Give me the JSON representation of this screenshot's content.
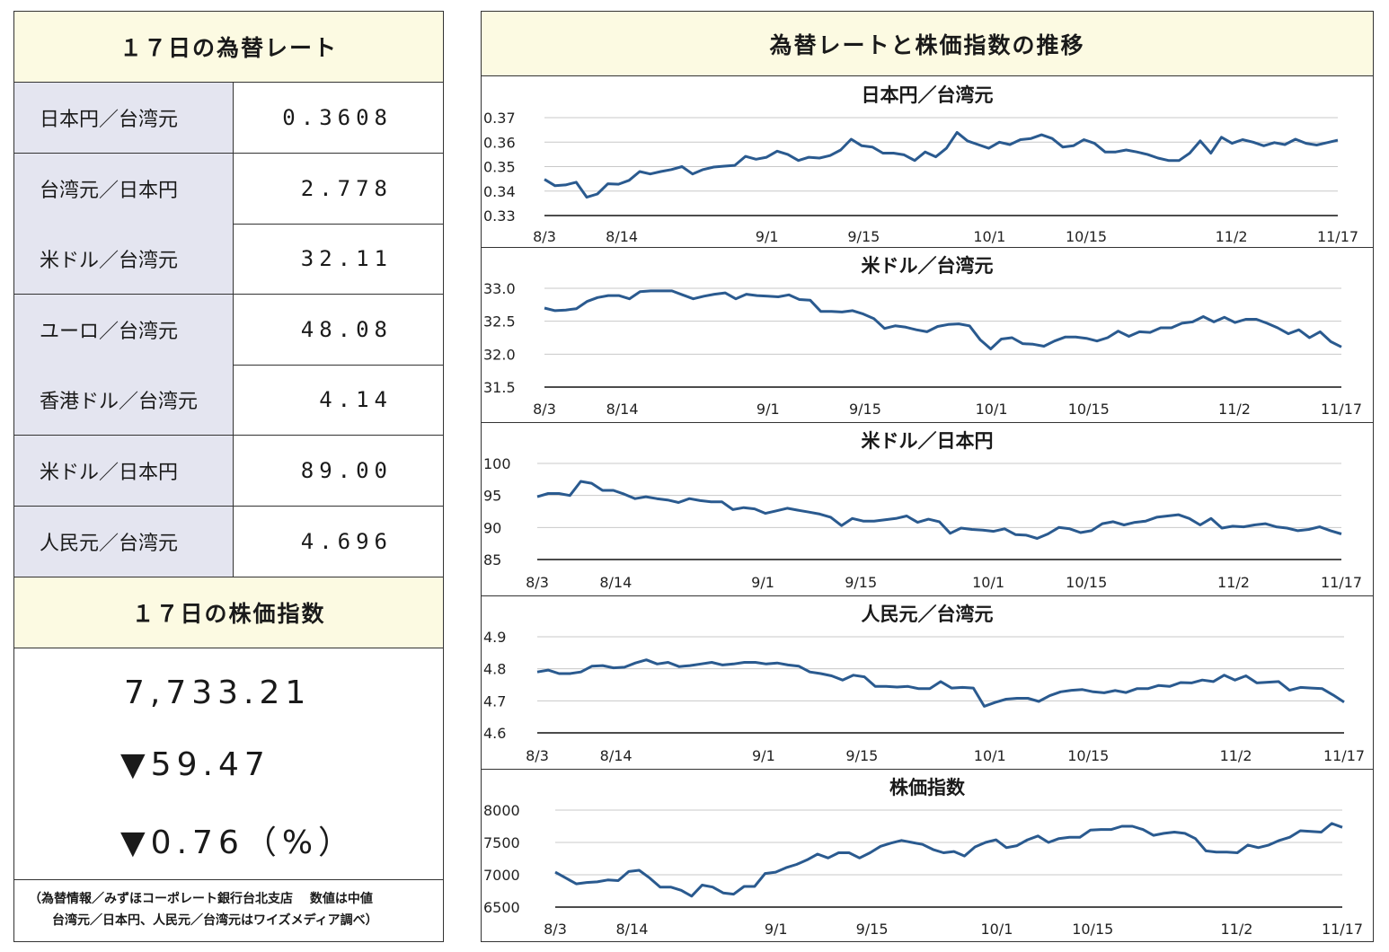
{
  "left": {
    "rates_title": "１７日の為替レート",
    "rates": [
      {
        "name": "日本円／台湾元",
        "value": "0.3608"
      },
      {
        "name": "台湾元／日本円",
        "value": "2.778"
      },
      {
        "name": "米ドル／台湾元",
        "value": "32.11"
      },
      {
        "name": "ユーロ／台湾元",
        "value": "48.08"
      },
      {
        "name": "香港ドル／台湾元",
        "value": "4.14"
      },
      {
        "name": "米ドル／日本円",
        "value": "89.00"
      },
      {
        "name": "人民元／台湾元",
        "value": "4.696"
      }
    ],
    "stock_title": "１７日の株価指数",
    "stock_value": "7,733.21",
    "stock_change": "▼59.47",
    "stock_change_pct": "▼0.76（%）",
    "note_line1": "（為替情報／みずほコーポレート銀行台北支店　 数値は中値",
    "note_line2": "台湾元／日本円、人民元／台湾元はワイズメディア調べ）"
  },
  "right": {
    "title": "為替レートと株価指数の推移"
  },
  "colors": {
    "line": "#2a5a8f",
    "grid": "#c8c8c8",
    "header_bg": "#fcfae2",
    "name_bg": "#e4e5f0"
  },
  "chart_data": [
    {
      "type": "line",
      "title": "日本円／台湾元",
      "x_tick_labels": [
        "8/3",
        "8/14",
        "9/1",
        "9/15",
        "10/1",
        "10/15",
        "11/2",
        "11/17"
      ],
      "x_tick_index": [
        0,
        8,
        23,
        33,
        46,
        56,
        71,
        82
      ],
      "y_ticks": [
        "0.33",
        "0.34",
        "0.35",
        "0.36",
        "0.37"
      ],
      "ylim": [
        0.33,
        0.37
      ],
      "values": [
        0.3448,
        0.3422,
        0.3425,
        0.3436,
        0.3375,
        0.3388,
        0.343,
        0.3428,
        0.3444,
        0.348,
        0.347,
        0.348,
        0.3488,
        0.35,
        0.347,
        0.3488,
        0.3498,
        0.3502,
        0.3505,
        0.3542,
        0.353,
        0.3538,
        0.3563,
        0.355,
        0.3525,
        0.3538,
        0.3535,
        0.3545,
        0.3568,
        0.3612,
        0.3585,
        0.358,
        0.3555,
        0.3555,
        0.3548,
        0.3525,
        0.356,
        0.354,
        0.3575,
        0.364,
        0.3605,
        0.359,
        0.3575,
        0.36,
        0.359,
        0.361,
        0.3615,
        0.363,
        0.3615,
        0.358,
        0.3585,
        0.361,
        0.3595,
        0.356,
        0.356,
        0.3568,
        0.356,
        0.355,
        0.3535,
        0.3525,
        0.3525,
        0.3555,
        0.3605,
        0.3555,
        0.362,
        0.3595,
        0.361,
        0.36,
        0.3585,
        0.3598,
        0.359,
        0.3612,
        0.3595,
        0.3588,
        0.3598,
        0.3608
      ]
    },
    {
      "type": "line",
      "title": "米ドル／台湾元",
      "x_tick_labels": [
        "8/3",
        "8/14",
        "9/1",
        "9/15",
        "10/1",
        "10/15",
        "11/2",
        "11/17"
      ],
      "x_tick_index": [
        0,
        8,
        23,
        33,
        46,
        56,
        71,
        82
      ],
      "y_ticks": [
        "31.5",
        "32.0",
        "32.5",
        "33.0"
      ],
      "ylim": [
        31.5,
        33.0
      ],
      "values": [
        32.7,
        32.66,
        32.67,
        32.69,
        32.8,
        32.86,
        32.89,
        32.89,
        32.84,
        32.95,
        32.96,
        32.96,
        32.96,
        32.9,
        32.84,
        32.88,
        32.91,
        32.93,
        32.84,
        32.91,
        32.89,
        32.88,
        32.87,
        32.9,
        32.83,
        32.82,
        32.65,
        32.65,
        32.64,
        32.66,
        32.61,
        32.54,
        32.39,
        32.43,
        32.41,
        32.37,
        32.34,
        32.42,
        32.45,
        32.46,
        32.43,
        32.22,
        32.08,
        32.23,
        32.25,
        32.16,
        32.15,
        32.12,
        32.2,
        32.26,
        32.26,
        32.24,
        32.2,
        32.25,
        32.35,
        32.27,
        32.34,
        32.33,
        32.4,
        32.4,
        32.47,
        32.49,
        32.57,
        32.49,
        32.56,
        32.48,
        32.53,
        32.53,
        32.47,
        32.4,
        32.31,
        32.37,
        32.25,
        32.34,
        32.19,
        32.11
      ]
    },
    {
      "type": "line",
      "title": "米ドル／日本円",
      "x_tick_labels": [
        "8/3",
        "8/14",
        "9/1",
        "9/15",
        "10/1",
        "10/15",
        "11/2",
        "11/17"
      ],
      "x_tick_index": [
        0,
        8,
        23,
        33,
        46,
        56,
        71,
        82
      ],
      "y_ticks": [
        "85",
        "90",
        "95",
        "100"
      ],
      "ylim": [
        85,
        100
      ],
      "values": [
        94.8,
        95.3,
        95.3,
        95.0,
        97.2,
        96.9,
        95.8,
        95.8,
        95.2,
        94.5,
        94.8,
        94.5,
        94.3,
        93.9,
        94.5,
        94.2,
        94.0,
        94.0,
        92.8,
        93.1,
        92.9,
        92.2,
        92.6,
        93.0,
        92.7,
        92.4,
        92.1,
        91.6,
        90.3,
        91.4,
        91.0,
        91.0,
        91.2,
        91.4,
        91.8,
        90.8,
        91.3,
        90.9,
        89.1,
        89.9,
        89.7,
        89.6,
        89.4,
        89.8,
        88.9,
        88.8,
        88.3,
        89.0,
        90.0,
        89.8,
        89.2,
        89.5,
        90.6,
        90.9,
        90.4,
        90.8,
        91.0,
        91.6,
        91.8,
        92.0,
        91.4,
        90.4,
        91.4,
        89.9,
        90.2,
        90.1,
        90.4,
        90.6,
        90.1,
        89.9,
        89.5,
        89.7,
        90.1,
        89.5,
        89.0
      ]
    },
    {
      "type": "line",
      "title": "人民元／台湾元",
      "x_tick_labels": [
        "8/3",
        "8/14",
        "9/1",
        "9/15",
        "10/1",
        "10/15",
        "11/2",
        "11/17"
      ],
      "x_tick_index": [
        0,
        8,
        23,
        33,
        46,
        56,
        71,
        82
      ],
      "y_ticks": [
        "4.6",
        "4.7",
        "4.8",
        "4.9"
      ],
      "ylim": [
        4.6,
        4.9
      ],
      "values": [
        4.79,
        4.796,
        4.785,
        4.785,
        4.79,
        4.808,
        4.81,
        4.803,
        4.805,
        4.818,
        4.828,
        4.815,
        4.82,
        4.807,
        4.81,
        4.815,
        4.82,
        4.812,
        4.815,
        4.82,
        4.82,
        4.815,
        4.818,
        4.812,
        4.808,
        4.79,
        4.785,
        4.778,
        4.765,
        4.78,
        4.775,
        4.745,
        4.745,
        4.743,
        4.745,
        4.738,
        4.738,
        4.76,
        4.74,
        4.742,
        4.74,
        4.683,
        4.695,
        4.705,
        4.708,
        4.708,
        4.698,
        4.716,
        4.728,
        4.733,
        4.735,
        4.728,
        4.725,
        4.732,
        4.726,
        4.738,
        4.738,
        4.748,
        4.745,
        4.757,
        4.756,
        4.765,
        4.76,
        4.78,
        4.765,
        4.778,
        4.756,
        4.758,
        4.76,
        4.733,
        4.742,
        4.74,
        4.738,
        4.718,
        4.696
      ]
    },
    {
      "type": "line",
      "title": "株価指数",
      "x_tick_labels": [
        "8/3",
        "8/14",
        "9/1",
        "9/15",
        "10/1",
        "10/15",
        "11/2",
        "11/17"
      ],
      "x_tick_index": [
        0,
        8,
        23,
        33,
        46,
        56,
        71,
        82
      ],
      "y_ticks": [
        "6500",
        "7000",
        "7500",
        "8000"
      ],
      "ylim": [
        6500,
        8000
      ],
      "values": [
        7040,
        6950,
        6860,
        6880,
        6890,
        6920,
        6910,
        7050,
        7070,
        6950,
        6810,
        6810,
        6760,
        6670,
        6840,
        6810,
        6720,
        6700,
        6820,
        6820,
        7020,
        7040,
        7110,
        7160,
        7230,
        7320,
        7260,
        7340,
        7340,
        7260,
        7340,
        7440,
        7490,
        7530,
        7500,
        7470,
        7390,
        7340,
        7360,
        7290,
        7430,
        7500,
        7540,
        7420,
        7450,
        7540,
        7600,
        7500,
        7560,
        7580,
        7580,
        7690,
        7700,
        7700,
        7750,
        7750,
        7700,
        7610,
        7640,
        7660,
        7640,
        7560,
        7370,
        7350,
        7350,
        7340,
        7460,
        7420,
        7460,
        7530,
        7580,
        7680,
        7670,
        7660,
        7793,
        7733
      ]
    }
  ]
}
